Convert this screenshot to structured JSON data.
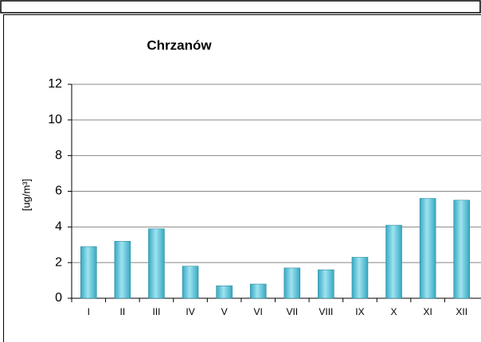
{
  "chart_data": {
    "type": "bar",
    "title": "Chrzanów",
    "y_label": "[ug/m³]",
    "categories": [
      "I",
      "II",
      "III",
      "IV",
      "V",
      "VI",
      "VII",
      "VIII",
      "IX",
      "X",
      "XI",
      "XII"
    ],
    "values": [
      2.9,
      3.2,
      3.9,
      1.8,
      0.7,
      0.8,
      1.7,
      1.6,
      2.3,
      4.1,
      5.6,
      5.5
    ],
    "color": "#35a9c2",
    "ylim": [
      0,
      12
    ],
    "yticks": [
      0,
      2,
      4,
      6,
      8,
      10,
      12
    ],
    "grid": true
  }
}
